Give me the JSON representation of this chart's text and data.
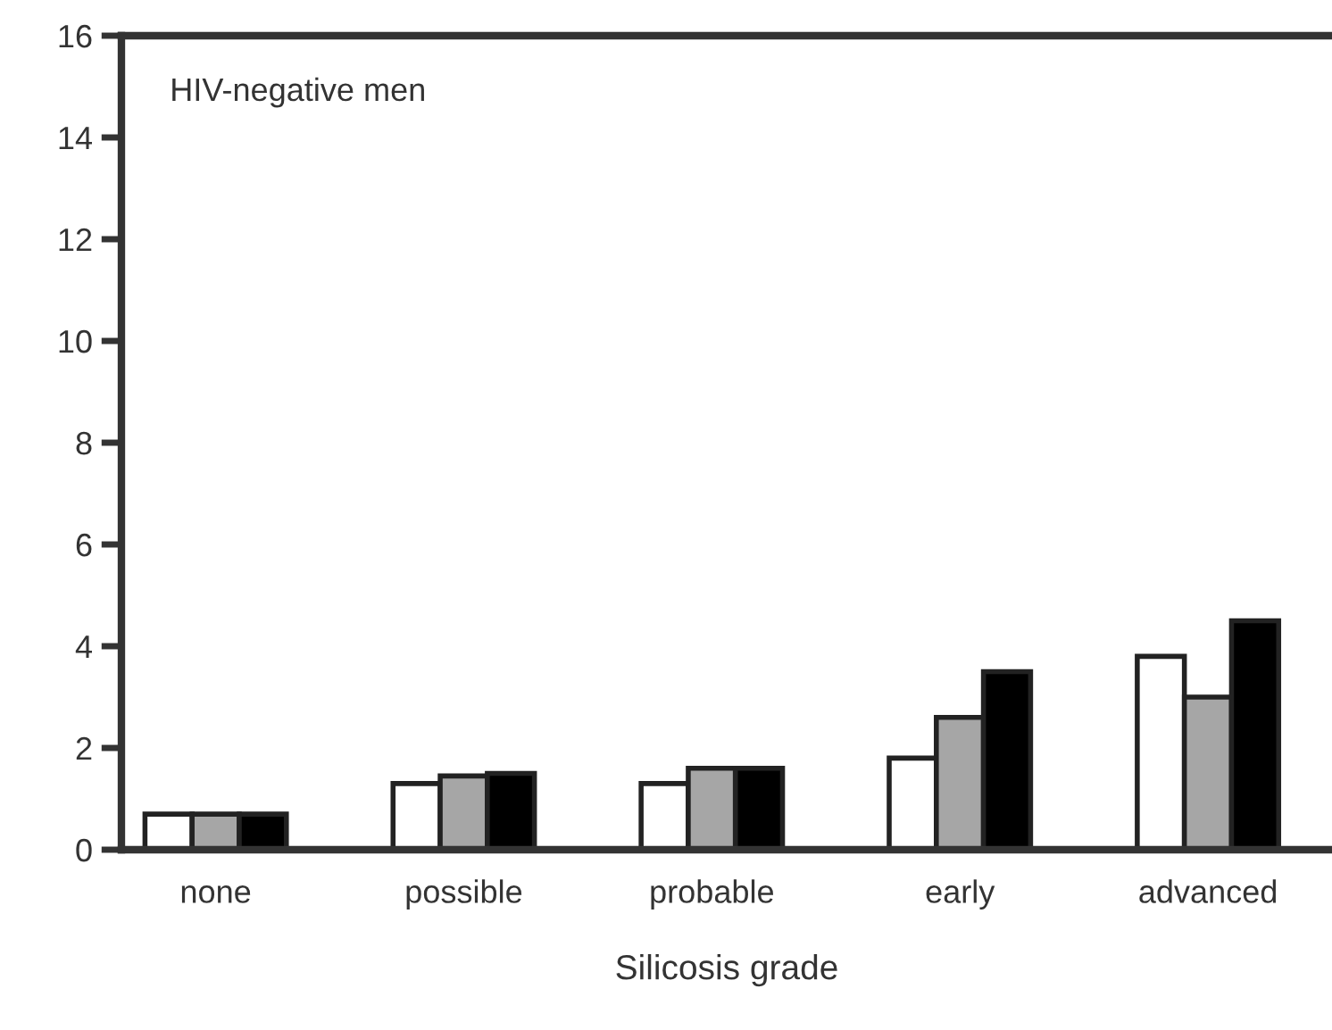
{
  "chart_data": {
    "type": "bar",
    "xlabel": "Silicosis grade",
    "annotations": [
      "HIV-negative men"
    ],
    "categories": [
      "none",
      "possible",
      "probable",
      "early",
      "advanced"
    ],
    "series": [
      {
        "color": "#ffffff",
        "values": [
          0.7,
          1.3,
          1.3,
          1.8,
          3.8
        ]
      },
      {
        "color": "#a6a6a6",
        "values": [
          0.7,
          1.45,
          1.6,
          2.6,
          3.0
        ]
      },
      {
        "color": "#000000",
        "values": [
          0.7,
          1.5,
          1.6,
          3.5,
          4.5
        ]
      }
    ],
    "ylim": [
      0,
      16
    ],
    "yticks": [
      0,
      2,
      4,
      6,
      8,
      10,
      12,
      14,
      16
    ],
    "grid": false
  }
}
